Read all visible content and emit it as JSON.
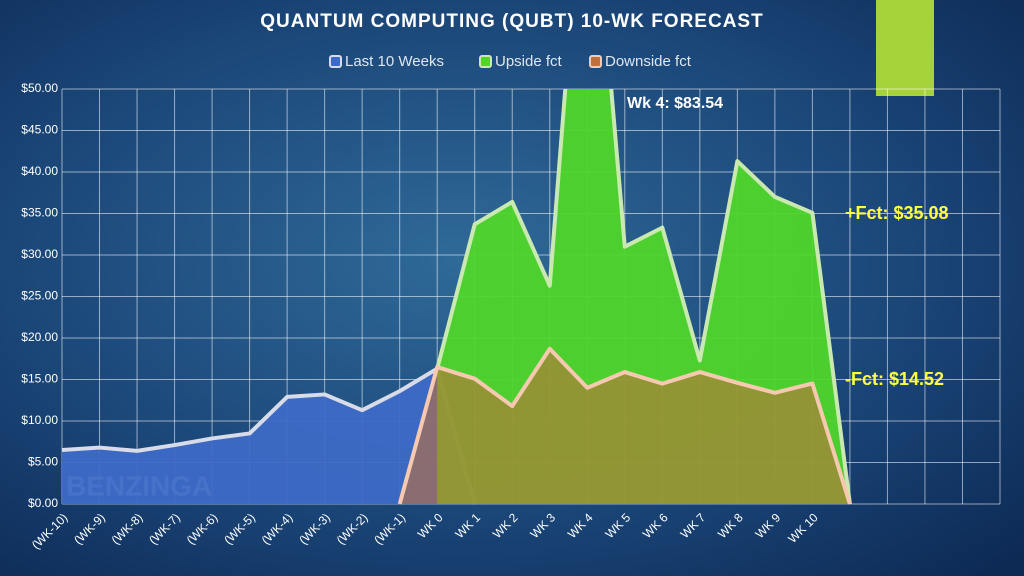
{
  "chart_data": {
    "type": "area",
    "title": "QUANTUM COMPUTING (QUBT) 10-WK FORECAST",
    "categories": [
      "(WK-10)",
      "(WK-9)",
      "(WK-8)",
      "(WK-7)",
      "(WK-6)",
      "(WK-5)",
      "(WK-4)",
      "(WK-3)",
      "(WK-2)",
      "(WK-1)",
      "WK 0",
      "WK 1",
      "WK 2",
      "WK 3",
      "WK 4",
      "WK 5",
      "WK 6",
      "WK 7",
      "WK 8",
      "WK 9",
      "WK 10",
      null,
      null,
      null,
      null,
      null
    ],
    "series": [
      {
        "name": "Last 10 Weeks",
        "color": "#3d6ac6",
        "line_color": "#d8dce8",
        "values": [
          6.5,
          6.8,
          6.4,
          7.1,
          7.9,
          8.5,
          12.9,
          13.2,
          11.3,
          13.6,
          16.3,
          0,
          null,
          null,
          null,
          null,
          null,
          null,
          null,
          null,
          null,
          null,
          null,
          null,
          null,
          null
        ]
      },
      {
        "name": "Upside fct",
        "color": "#4fd62a",
        "line_color": "#c9e9b0",
        "values": [
          null,
          null,
          null,
          null,
          null,
          null,
          null,
          null,
          null,
          null,
          16.3,
          33.7,
          36.4,
          26.3,
          83.54,
          31.0,
          33.3,
          17.3,
          41.3,
          37.0,
          35.08,
          0,
          null,
          null,
          null,
          null
        ]
      },
      {
        "name": "Downside fct",
        "color": "#c0703a",
        "line_color": "#f7c9b0",
        "values": [
          null,
          null,
          null,
          null,
          null,
          null,
          null,
          null,
          null,
          0,
          16.5,
          15.1,
          11.8,
          18.7,
          14.0,
          15.9,
          14.5,
          15.9,
          14.6,
          13.4,
          14.52,
          0,
          null,
          null,
          null,
          null
        ]
      }
    ],
    "ylim": [
      0,
      50
    ],
    "yticks": [
      {
        "value": 0,
        "label": "$0.00"
      },
      {
        "value": 5,
        "label": "$5.00"
      },
      {
        "value": 10,
        "label": "$10.00"
      },
      {
        "value": 15,
        "label": "$15.00"
      },
      {
        "value": 20,
        "label": "$20.00"
      },
      {
        "value": 25,
        "label": "$25.00"
      },
      {
        "value": 30,
        "label": "$30.00"
      },
      {
        "value": 35,
        "label": "$35.00"
      },
      {
        "value": 40,
        "label": "$40.00"
      },
      {
        "value": 45,
        "label": "$45.00"
      },
      {
        "value": 50,
        "label": "$50.00"
      }
    ],
    "grid": true,
    "legend": "top",
    "annotations": [
      "Wk 4: $83.54",
      "+Fct: $35.08",
      "-Fct: $14.52"
    ],
    "watermark": "BENZINGA"
  }
}
